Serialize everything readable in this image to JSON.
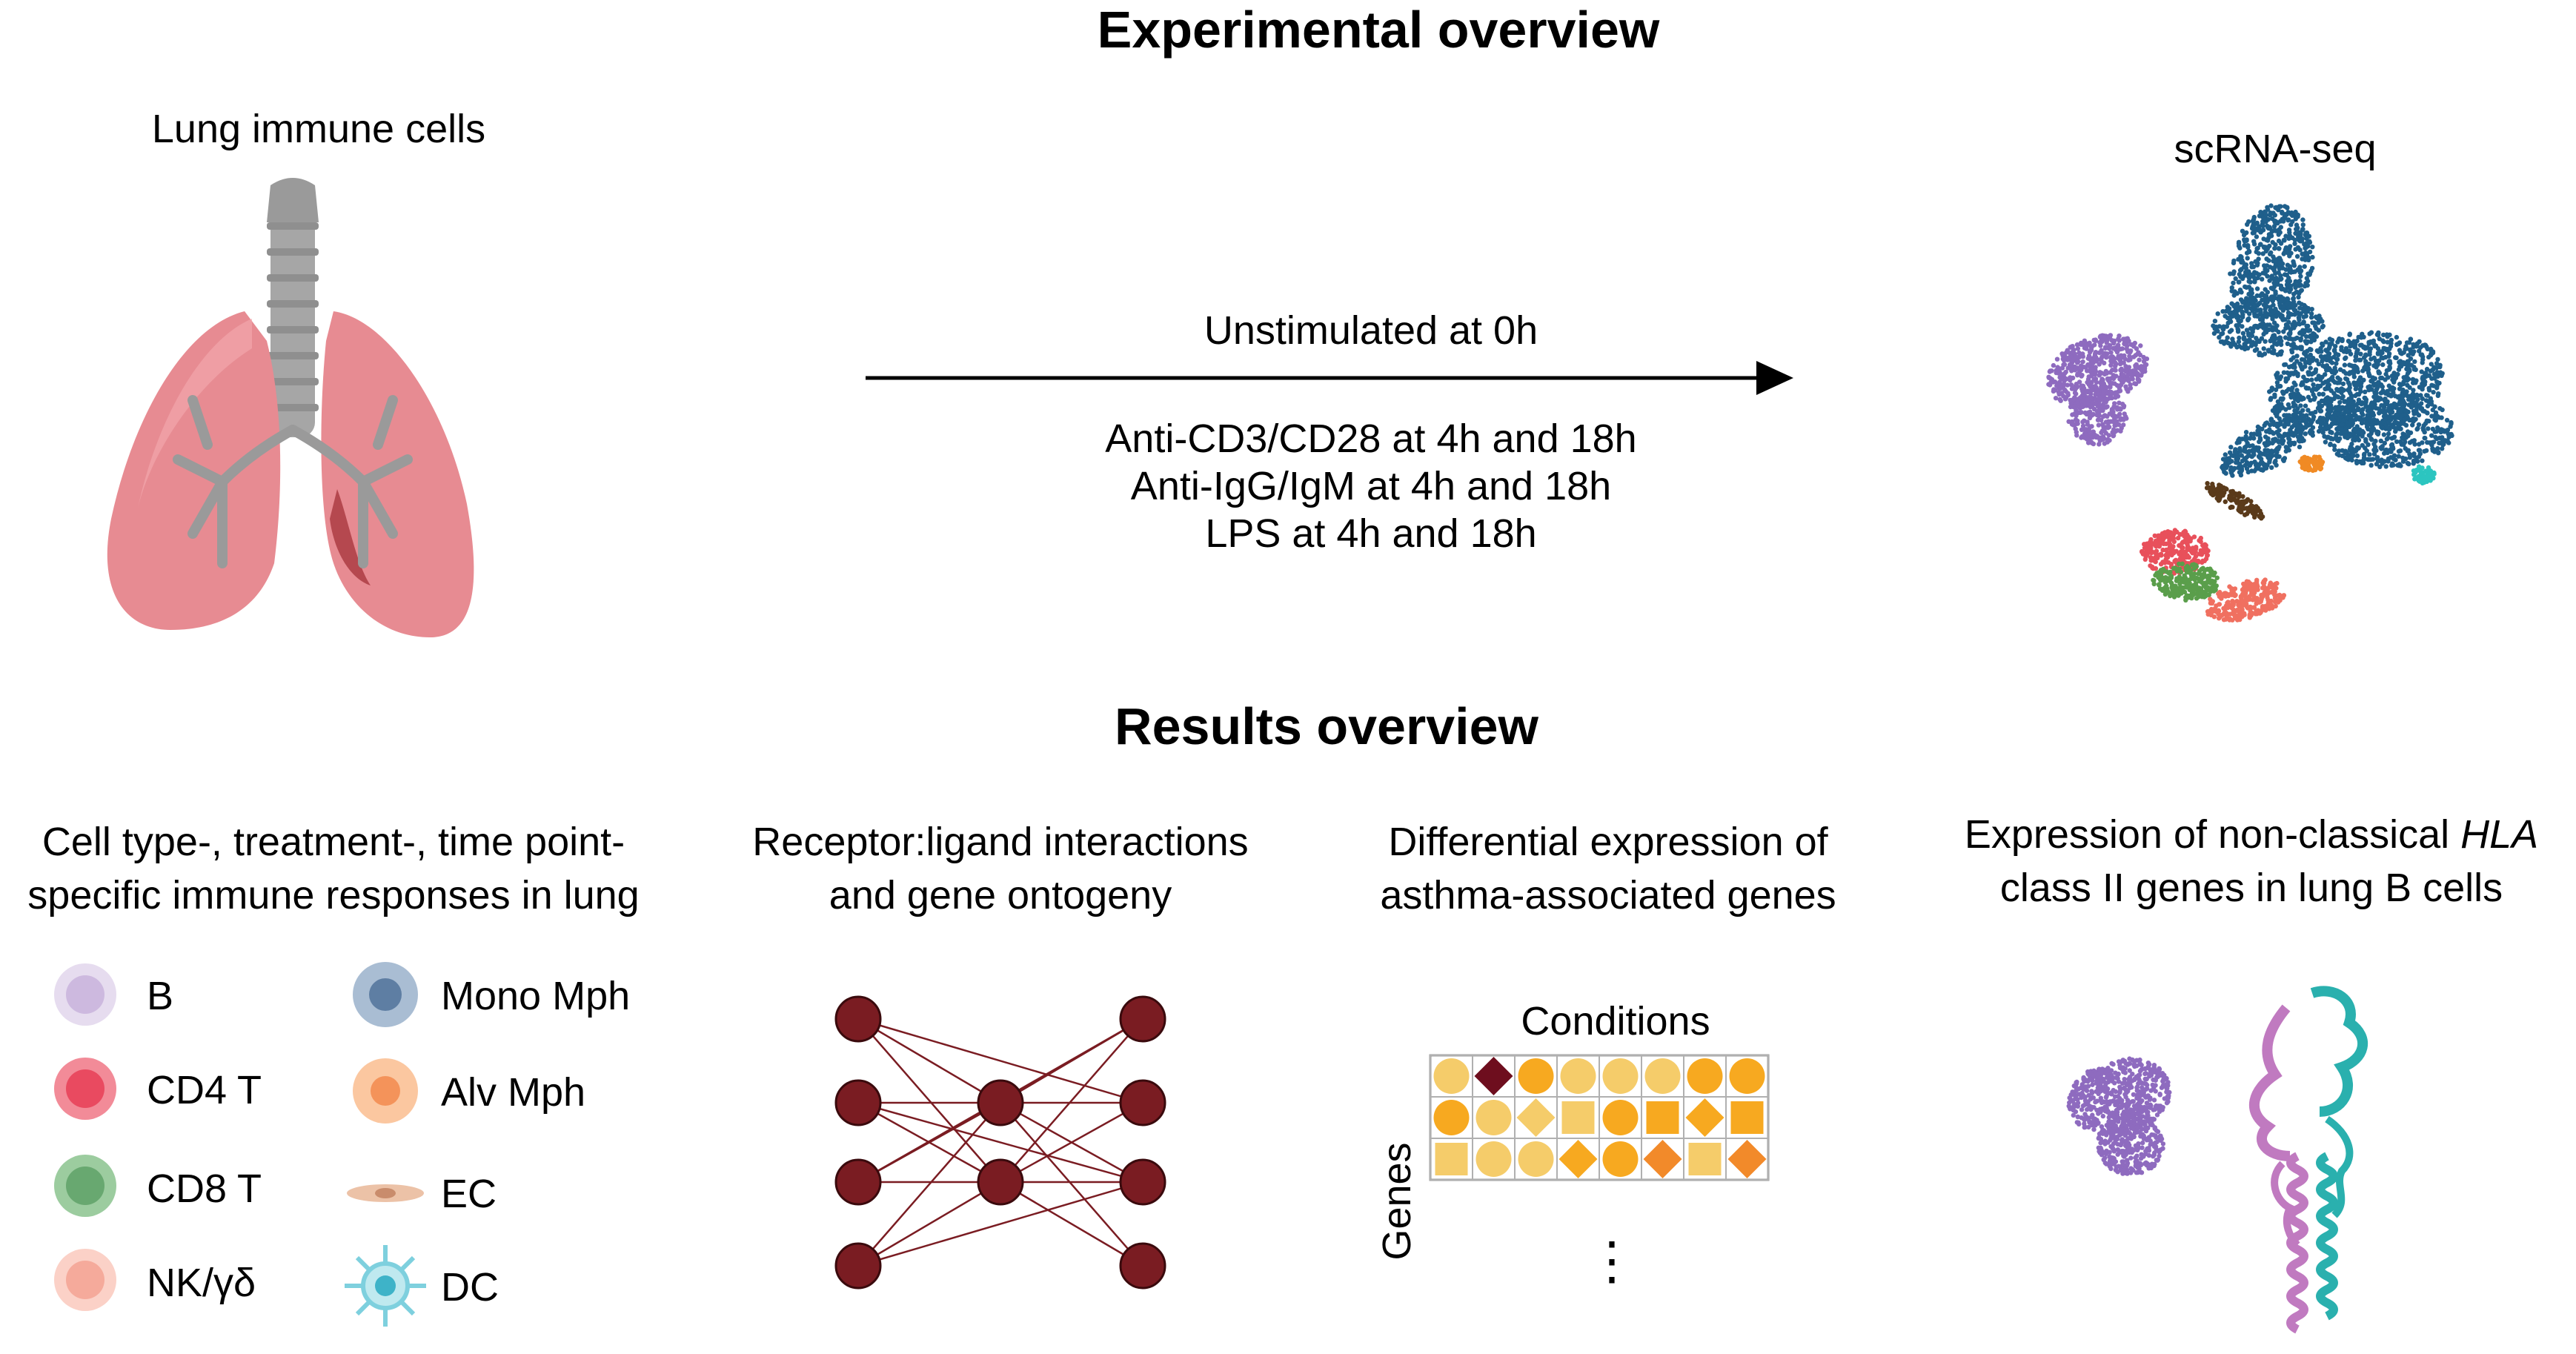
{
  "experimental": {
    "title": "Experimental overview",
    "lung_label": "Lung immune cells",
    "scrna_label": "scRNA-seq",
    "arrow_top": "Unstimulated at 0h",
    "conditions": [
      "Anti-CD3/CD28 at 4h and 18h",
      "Anti-IgG/IgM at 4h and 18h",
      "LPS at 4h and 18h"
    ]
  },
  "results": {
    "title": "Results overview",
    "panel1": {
      "line1": "Cell type-, treatment-, time point-",
      "line2": "specific immune responses in lung"
    },
    "panel2": {
      "line1": "Receptor:ligand interactions",
      "line2": "and gene ontogeny"
    },
    "panel3": {
      "line1": "Differential expression of",
      "line2": "asthma-associated genes",
      "heatmap_title": "Conditions",
      "heatmap_axis": "Genes",
      "ellipsis": "⋮"
    },
    "panel4": {
      "line1_pre": "Expression of non-classical ",
      "line1_em": "HLA",
      "line2": "class II genes in lung B cells"
    }
  },
  "legend": {
    "left": [
      {
        "label": "B",
        "color": "#d9c8e6",
        "icon": "b-cell-icon"
      },
      {
        "label": "CD4 T",
        "color": "#ef5a6f",
        "icon": "cd4-t-cell-icon"
      },
      {
        "label": "CD8 T",
        "color": "#6fb07a",
        "icon": "cd8-t-cell-icon"
      },
      {
        "label": "NK/γδ",
        "color": "#f8b8aa",
        "icon": "nk-cell-icon"
      }
    ],
    "right": [
      {
        "label": "Mono Mph",
        "color": "#8aa8c8",
        "icon": "mono-mph-icon"
      },
      {
        "label": "Alv Mph",
        "color": "#f7a870",
        "icon": "alv-mph-icon"
      },
      {
        "label": "EC",
        "color": "#e8b89a",
        "icon": "ec-icon"
      },
      {
        "label": "DC",
        "color": "#7ed0de",
        "icon": "dc-icon"
      }
    ]
  },
  "colors": {
    "network_node": "#7a1c22",
    "umap_blue": "#1f5f8b",
    "umap_purple": "#8e6bbf",
    "umap_red": "#e8505b",
    "umap_green": "#5a9e4b",
    "umap_salmon": "#f07060",
    "umap_orange": "#f08a24",
    "umap_teal": "#2cc5c0",
    "umap_brown": "#5a3a1a"
  }
}
